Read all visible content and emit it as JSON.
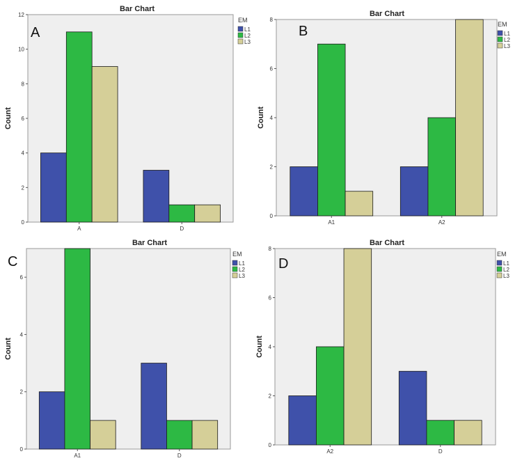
{
  "series_colors": [
    "#3f51aa",
    "#2db944",
    "#d5cf98"
  ],
  "chart_data": [
    {
      "panel": "A",
      "type": "bar",
      "title": "Bar Chart",
      "xlabel": "",
      "ylabel": "Count",
      "ylim": [
        0,
        12
      ],
      "yticks": [
        0,
        2,
        4,
        6,
        8,
        10,
        12
      ],
      "categories": [
        "A",
        "D"
      ],
      "legend_title": "EM",
      "series": [
        {
          "name": "L1",
          "values": [
            4,
            3
          ]
        },
        {
          "name": "L2",
          "values": [
            11,
            1
          ]
        },
        {
          "name": "L3",
          "values": [
            9,
            1
          ]
        }
      ]
    },
    {
      "panel": "B",
      "type": "bar",
      "title": "Bar Chart",
      "xlabel": "",
      "ylabel": "Count",
      "ylim": [
        0,
        8
      ],
      "yticks": [
        0,
        2,
        4,
        6,
        8
      ],
      "categories": [
        "A1",
        "A2"
      ],
      "legend_title": "EM",
      "series": [
        {
          "name": "L1",
          "values": [
            2,
            2
          ]
        },
        {
          "name": "L2",
          "values": [
            7,
            4
          ]
        },
        {
          "name": "L3",
          "values": [
            1,
            8
          ]
        }
      ]
    },
    {
      "panel": "C",
      "type": "bar",
      "title": "Bar Chart",
      "xlabel": "",
      "ylabel": "Count",
      "ylim": [
        0,
        7
      ],
      "yticks": [
        0,
        2,
        4,
        6
      ],
      "categories": [
        "A1",
        "D"
      ],
      "legend_title": "EM",
      "series": [
        {
          "name": "L1",
          "values": [
            2,
            3
          ]
        },
        {
          "name": "L2",
          "values": [
            7,
            1
          ]
        },
        {
          "name": "L3",
          "values": [
            1,
            1
          ]
        }
      ]
    },
    {
      "panel": "D",
      "type": "bar",
      "title": "Bar Chart",
      "xlabel": "",
      "ylabel": "Count",
      "ylim": [
        0,
        8
      ],
      "yticks": [
        0,
        2,
        4,
        6,
        8
      ],
      "categories": [
        "A2",
        "D"
      ],
      "legend_title": "EM",
      "series": [
        {
          "name": "L1",
          "values": [
            2,
            3
          ]
        },
        {
          "name": "L2",
          "values": [
            4,
            1
          ]
        },
        {
          "name": "L3",
          "values": [
            8,
            1
          ]
        }
      ]
    }
  ]
}
